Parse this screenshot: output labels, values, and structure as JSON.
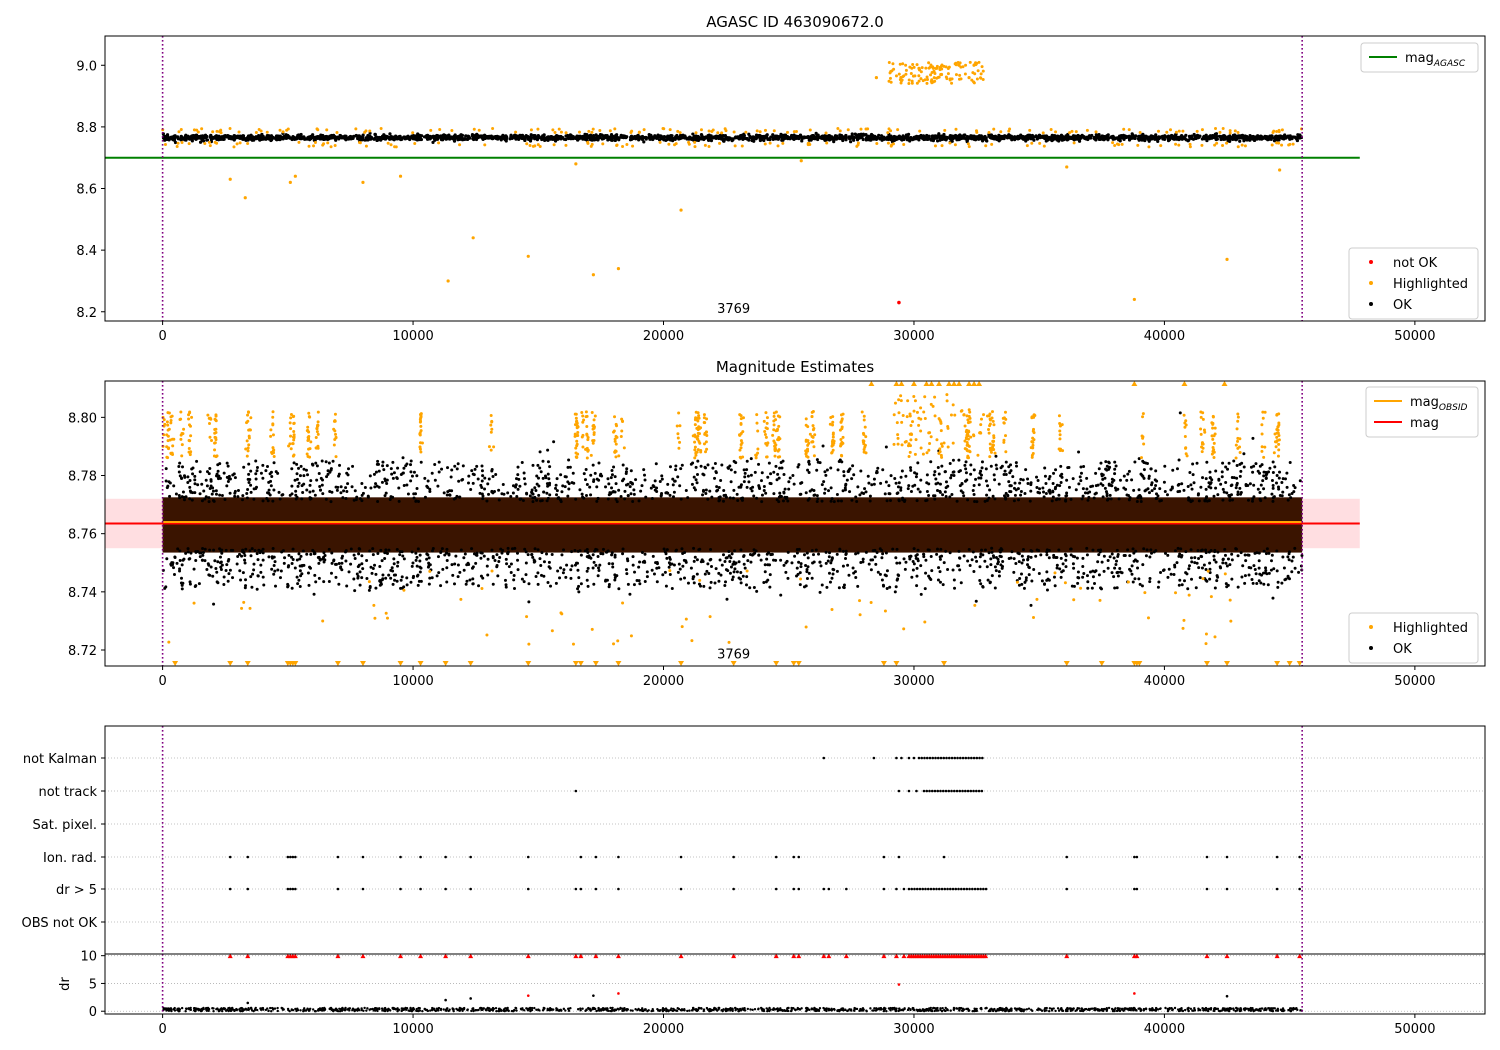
{
  "figure": {
    "title": "AGASC ID 463090672.0",
    "colors": {
      "ok": "#000000",
      "highlighted": "#ffa500",
      "not_ok": "#ff0000",
      "mag_agasc": "#008000",
      "mag_obsid": "#ffa500",
      "mag": "#ff0000",
      "vline": "#800080",
      "band": "#ffd6d9",
      "brown": "#3a1400",
      "grid": "#b0b0b0"
    }
  },
  "chart_data": [
    {
      "type": "scatter",
      "title": "AGASC ID 463090672.0",
      "xlabel": "",
      "ylabel": "",
      "xlim": [
        -2300,
        52800
      ],
      "ylim": [
        8.17,
        9.095
      ],
      "xticks": [
        0,
        10000,
        20000,
        30000,
        40000,
        50000
      ],
      "yticks": [
        8.2,
        8.4,
        8.6,
        8.8,
        9.0
      ],
      "ytick_labels": [
        "8.2",
        "8.4",
        "8.6",
        "8.8",
        "9.0"
      ],
      "annotation": "3769",
      "annotation_at": [
        22800,
        8.2
      ],
      "vlines": [
        0,
        45500
      ],
      "grid": false,
      "legends": [
        {
          "location": "upper right",
          "entries": [
            {
              "label": "mag",
              "sub": "AGASC",
              "kind": "line",
              "color": "#008000"
            }
          ]
        },
        {
          "location": "lower right",
          "entries": [
            {
              "label": "not OK",
              "kind": "marker",
              "color": "#ff0000"
            },
            {
              "label": "Highlighted",
              "kind": "marker",
              "color": "#ffa500"
            },
            {
              "label": "OK",
              "kind": "marker",
              "color": "#000000"
            }
          ]
        }
      ],
      "lines": [
        {
          "name": "mag_AGASC",
          "y": 8.7,
          "x": [
            -2300,
            47800
          ]
        }
      ],
      "series": [
        {
          "name": "OK",
          "description": "dense band of points",
          "x_range": [
            0,
            45500
          ],
          "y_center": 8.765,
          "y_spread": 0.012
        },
        {
          "name": "Highlighted",
          "x": [
            3300,
            9500,
            12400,
            14600,
            17200,
            18200,
            20700,
            11400,
            25500,
            38800,
            42500,
            28500,
            30200,
            31100,
            32200,
            29500,
            31800,
            30800,
            2700,
            5300,
            5100,
            8000,
            36100,
            44600,
            16500
          ],
          "y": [
            8.57,
            8.64,
            8.44,
            8.38,
            8.32,
            8.34,
            8.53,
            8.3,
            8.69,
            8.24,
            8.37,
            8.96,
            8.99,
            8.97,
            8.96,
            8.95,
            9.0,
            8.98,
            8.63,
            8.64,
            8.62,
            8.62,
            8.67,
            8.66,
            8.68
          ]
        },
        {
          "name": "not OK",
          "x": [
            29400
          ],
          "y": [
            8.23
          ]
        }
      ]
    },
    {
      "type": "scatter",
      "title": "Magnitude Estimates",
      "xlabel": "",
      "ylabel": "",
      "xlim": [
        -2300,
        52800
      ],
      "ylim": [
        8.7145,
        8.8125
      ],
      "xticks": [
        0,
        10000,
        20000,
        30000,
        40000,
        50000
      ],
      "yticks": [
        8.72,
        8.74,
        8.76,
        8.78,
        8.8
      ],
      "ytick_labels": [
        "8.72",
        "8.74",
        "8.76",
        "8.78",
        "8.80"
      ],
      "annotation": "3769",
      "annotation_at": [
        22800,
        8.7175
      ],
      "vlines": [
        0,
        45500
      ],
      "grid": false,
      "band": {
        "y": [
          8.755,
          8.772
        ],
        "x": [
          -2300,
          47800
        ]
      },
      "legends": [
        {
          "location": "upper right",
          "entries": [
            {
              "label": "mag",
              "sub": "OBSID",
              "kind": "line",
              "color": "#ffa500"
            },
            {
              "label": "mag",
              "kind": "line",
              "color": "#ff0000"
            }
          ]
        },
        {
          "location": "lower right",
          "entries": [
            {
              "label": "Highlighted",
              "kind": "marker",
              "color": "#ffa500"
            },
            {
              "label": "OK",
              "kind": "marker",
              "color": "#000000"
            }
          ]
        }
      ],
      "lines": [
        {
          "name": "mag",
          "y": 8.7635,
          "x": [
            -2300,
            47800
          ]
        },
        {
          "name": "mag_OBSID",
          "y": 8.764,
          "x": [
            0,
            45500
          ]
        }
      ],
      "series": [
        {
          "name": "OK",
          "description": "dense band of points",
          "x_range": [
            0,
            45500
          ],
          "y_center": 8.763,
          "y_spread": 0.008
        },
        {
          "name": "Highlighted",
          "description": "spikes above the band",
          "x_range": [
            0,
            45500
          ],
          "y_range": [
            8.786,
            8.8
          ]
        }
      ]
    },
    {
      "type": "scatter",
      "title": "",
      "xlabel": "",
      "ylabel": "",
      "xlim": [
        -2300,
        52800
      ],
      "categories": [
        "not Kalman",
        "not track",
        "Sat. pixel.",
        "Ion. rad.",
        "dr > 5",
        "OBS not OK"
      ],
      "vlines": [
        0,
        45500
      ],
      "grid": true,
      "flags": {
        "not Kalman": {
          "points": [
            26400,
            28400,
            29300,
            29500,
            29800,
            30000
          ],
          "range": [
            30200,
            32800
          ]
        },
        "not track": {
          "points": [
            16500,
            29400,
            29800,
            30100
          ],
          "range": [
            30400,
            32800
          ]
        },
        "Sat. pixel.": {
          "points": []
        },
        "Ion. rad.": {
          "points": [
            2700,
            3400,
            5000,
            5100,
            5200,
            5300,
            7000,
            8000,
            9500,
            10300,
            11300,
            12300,
            14600,
            16700,
            17300,
            18200,
            20700,
            22800,
            24500,
            25200,
            25400,
            28800,
            29400,
            31200,
            36100,
            38800,
            38900,
            41700,
            42500,
            44500,
            45400
          ]
        },
        "dr > 5": {
          "points": [
            2700,
            3400,
            5000,
            5100,
            5200,
            5300,
            7000,
            8000,
            9500,
            10300,
            11300,
            12300,
            14600,
            16500,
            16700,
            17300,
            18200,
            20700,
            22800,
            24500,
            25200,
            25400,
            26400,
            26600,
            27300,
            28800,
            29300,
            29600
          ],
          "range": [
            29800,
            32900
          ],
          "points_after": [
            36100,
            38800,
            38900,
            41700,
            42500,
            44500,
            45400
          ]
        },
        "OBS not OK": {
          "points": []
        }
      }
    },
    {
      "type": "scatter",
      "title": "",
      "xlabel": "",
      "ylabel": "dr",
      "xlim": [
        -2300,
        52800
      ],
      "ylim": [
        -0.5,
        10.3
      ],
      "xticks": [
        0,
        10000,
        20000,
        30000,
        40000,
        50000
      ],
      "yticks": [
        0,
        5,
        10
      ],
      "ytick_labels": [
        "0",
        "5",
        "10"
      ],
      "grid": true,
      "vlines": [
        0,
        45500
      ],
      "series": [
        {
          "name": "dr",
          "description": "small values near zero",
          "x_range": [
            0,
            45500
          ],
          "y_range": [
            0,
            0.6
          ]
        },
        {
          "name": "dr clipped",
          "color": "#ff0000",
          "y": 10,
          "x": [
            2700,
            3400,
            5000,
            5100,
            5200,
            5300,
            7000,
            8000,
            9500,
            10300,
            11300,
            12300,
            14600,
            16500,
            16700,
            17300,
            18200,
            20700,
            22800,
            24500,
            25200,
            25400,
            26400,
            26600,
            27300,
            28800,
            29300,
            29600,
            36100,
            38800,
            38900,
            41700,
            42500,
            44500,
            45400
          ],
          "range": [
            29800,
            32900
          ]
        },
        {
          "name": "dr outliers",
          "x": [
            14600,
            18200,
            29400,
            38800,
            3400,
            11300,
            12300,
            17200,
            42500
          ],
          "y": [
            2.8,
            3.2,
            4.8,
            3.2,
            1.5,
            2.0,
            2.3,
            2.8,
            2.7
          ]
        }
      ]
    }
  ]
}
